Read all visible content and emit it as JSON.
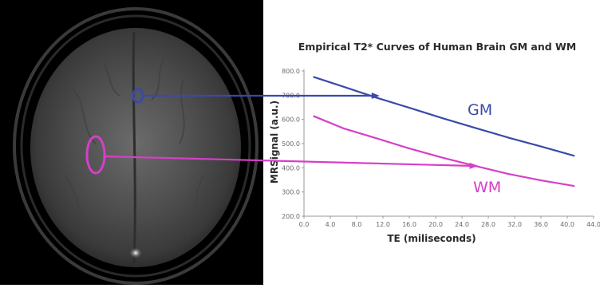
{
  "colors": {
    "gm": "#3a4aa8",
    "wm": "#d63fc8",
    "axis": "#9a9a9a",
    "text": "#2b2b2b",
    "mri_background": "#000000"
  },
  "regions": [
    {
      "series": "GM",
      "shape": "small-ellipse",
      "color": "#3a4aa8"
    },
    {
      "series": "WM",
      "shape": "tall-ellipse",
      "color": "#d63fc8"
    }
  ],
  "chart_data": {
    "type": "line",
    "title": "Empirical T2* Curves of Human Brain GM and WM",
    "xlabel": "TE (miliseconds)",
    "ylabel": "MRSignal (a.u.)",
    "xlim": [
      0,
      44
    ],
    "ylim": [
      200,
      800
    ],
    "x_ticks": [
      "0.0",
      "4.0",
      "8.0",
      "12.0",
      "16.0",
      "20.0",
      "24.0",
      "28.0",
      "32.0",
      "36.0",
      "40.0",
      "44.0"
    ],
    "y_ticks": [
      "800.0",
      "700.0",
      "600.0",
      "500.0",
      "400.0",
      "300.0",
      "200.0"
    ],
    "grid": false,
    "series": [
      {
        "name": "GM",
        "color": "#3a4aa8",
        "x": [
          1.5,
          6,
          11,
          16,
          21,
          26,
          31,
          36,
          41
        ],
        "y": [
          775,
          735,
          690,
          648,
          605,
          565,
          525,
          488,
          450
        ]
      },
      {
        "name": "WM",
        "color": "#d63fc8",
        "x": [
          1.5,
          6,
          11,
          16,
          21,
          26,
          31,
          36,
          41
        ],
        "y": [
          613,
          563,
          522,
          480,
          442,
          408,
          375,
          348,
          325
        ]
      }
    ]
  }
}
